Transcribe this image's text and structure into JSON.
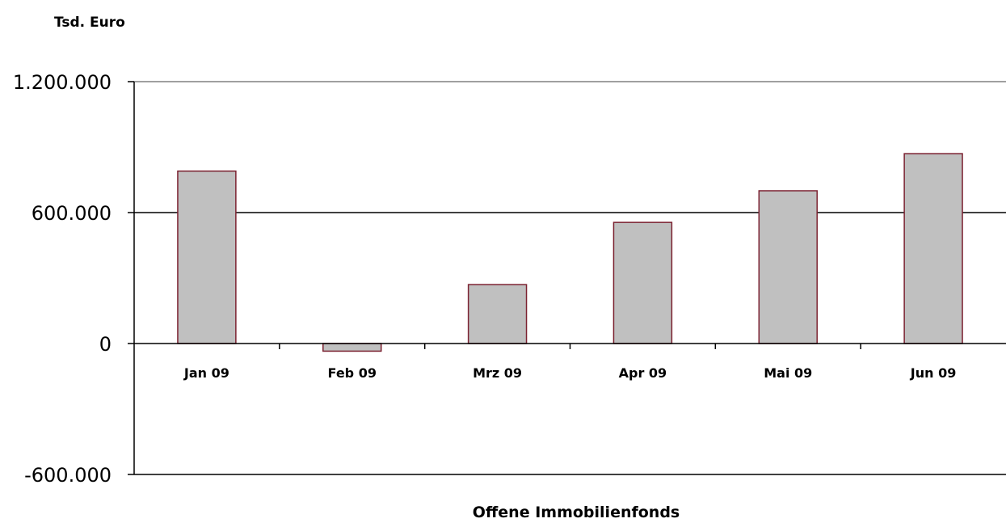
{
  "chart_data": {
    "type": "bar",
    "ylabel": "Tsd. Euro",
    "xlabel": "Offene Immobilienfonds",
    "categories": [
      "Jan 09",
      "Feb 09",
      "Mrz 09",
      "Apr 09",
      "Mai 09",
      "Jun 09"
    ],
    "values": [
      790000,
      -35000,
      270000,
      555000,
      700000,
      870000
    ],
    "ylim": [
      -600000,
      1200000
    ],
    "yticks": [
      -600000,
      0,
      600000,
      1200000
    ],
    "ytick_labels": [
      "-600.000",
      "0",
      "600.000",
      "1.200.000"
    ],
    "grid": "horizontal major gridlines",
    "legend": "none",
    "colors": {
      "bar_fill": "#c0c0c0",
      "bar_stroke": "#7b2130",
      "axis": "#000000"
    }
  }
}
